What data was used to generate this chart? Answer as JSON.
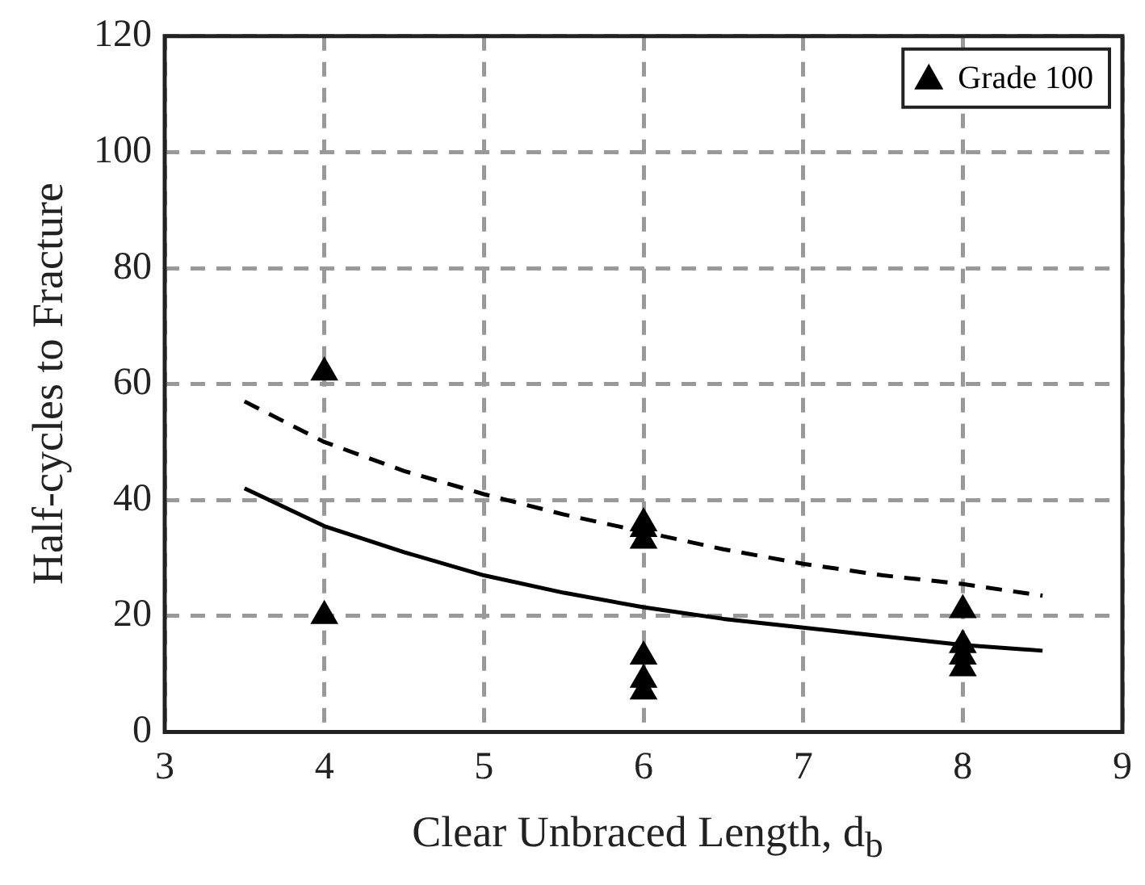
{
  "chart_data": {
    "type": "scatter",
    "xlabel": "Clear Unbraced Length, d$_{b}$",
    "ylabel": "Half-cycles to Fracture",
    "xlim": [
      3,
      9
    ],
    "ylim": [
      0,
      120
    ],
    "xticks": [
      3,
      4,
      5,
      6,
      7,
      8,
      9
    ],
    "yticks": [
      0,
      20,
      40,
      60,
      80,
      100,
      120
    ],
    "grid": true,
    "legend": "top right",
    "series": [
      {
        "name": "Grade 100",
        "type": "scatter",
        "marker": "triangle",
        "color": "#000000",
        "x": [
          4,
          4,
          6,
          6,
          6,
          6,
          6,
          6,
          8,
          8,
          8,
          8
        ],
        "values": [
          62,
          20,
          36,
          35,
          33,
          13,
          9,
          7,
          21,
          15,
          13,
          11
        ]
      },
      {
        "type": "line",
        "marker": "none",
        "color": "#000000",
        "line_style": "solid",
        "x": [
          3.5,
          4,
          4.5,
          5,
          5.5,
          6,
          6.5,
          7,
          7.5,
          8,
          8.5
        ],
        "values": [
          42,
          35.5,
          31,
          27,
          24,
          21.5,
          19.5,
          18,
          16.5,
          15,
          14
        ]
      },
      {
        "type": "line",
        "marker": "none",
        "color": "#000000",
        "line_style": "dashed",
        "x": [
          3.5,
          4,
          4.5,
          5,
          5.5,
          6,
          6.5,
          7,
          7.5,
          8,
          8.5
        ],
        "values": [
          57,
          50,
          45,
          41,
          37.5,
          34.5,
          31.5,
          29,
          27,
          25.5,
          23.5
        ]
      }
    ]
  }
}
